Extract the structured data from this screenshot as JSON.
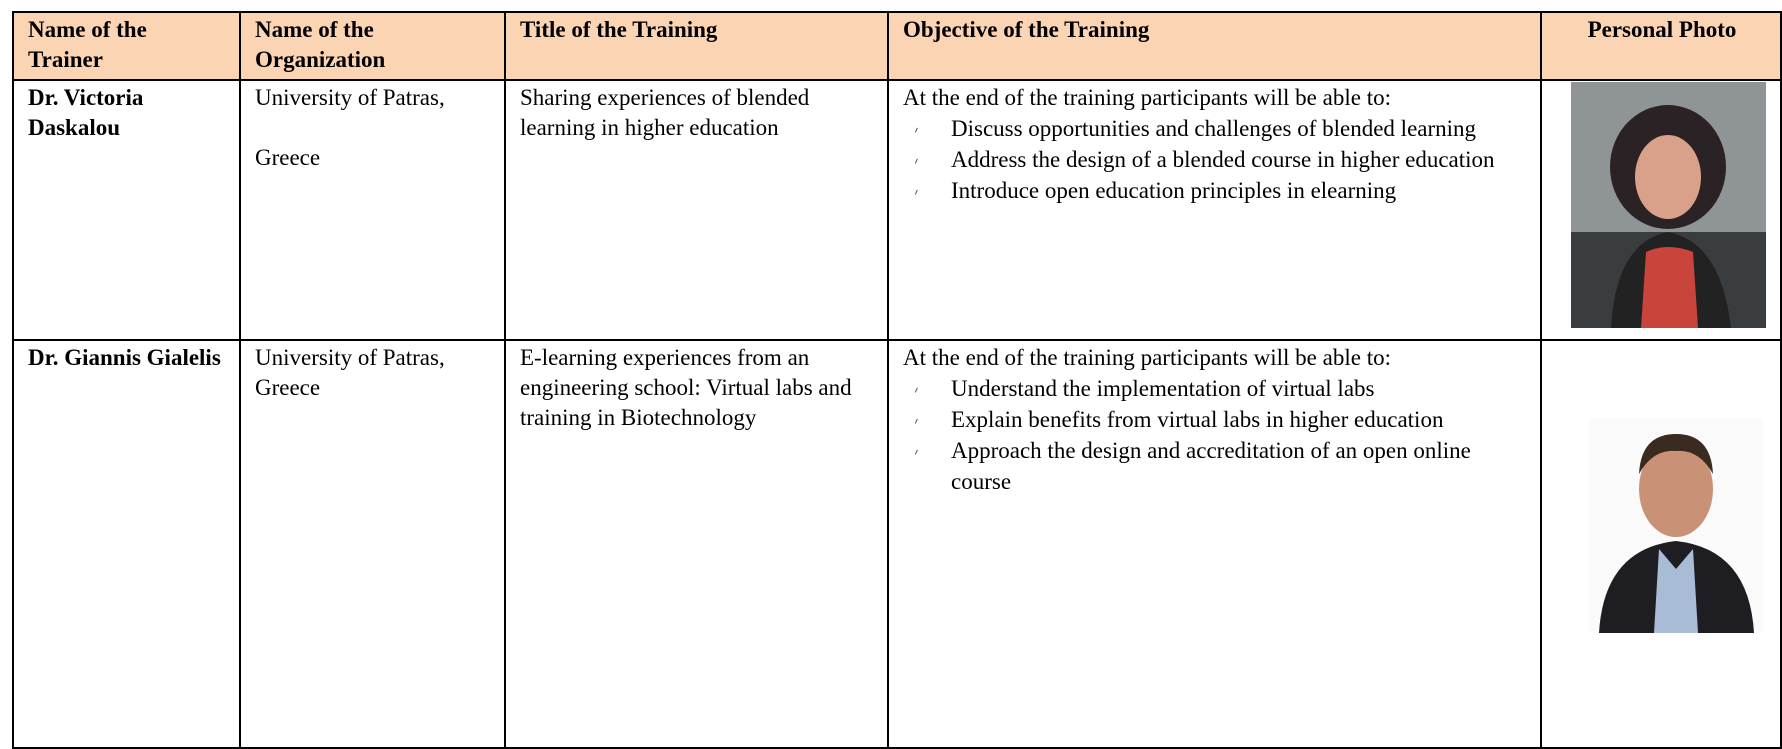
{
  "table": {
    "header": [
      "Name of the Trainer",
      "Name of the Organization",
      "Title of the Training",
      "Objective of the Training",
      "Personal Photo"
    ],
    "rows": [
      {
        "trainer": "Dr. Victoria Daskalou",
        "organization": [
          "University of Patras,",
          "Greece"
        ],
        "title": "Sharing experiences of blended learning in higher education",
        "objective_intro": "At the end of the training participants will be able to:",
        "objectives": [
          "Discuss opportunities and challenges of blended learning",
          "Address the design of a blended course in higher education",
          "Introduce open education principles in elearning"
        ]
      },
      {
        "trainer": "Dr. Giannis Gialelis",
        "organization": [
          "University of Patras,",
          "Greece"
        ],
        "title": "E-learning experiences from an engineering school: Virtual labs and training in Biotechnology",
        "objective_intro": "At the end of the training participants will be able to:",
        "objectives": [
          "Understand the implementation of virtual labs",
          "Explain benefits from virtual labs in higher education",
          "Approach the design and accreditation of an open online course"
        ]
      }
    ]
  }
}
